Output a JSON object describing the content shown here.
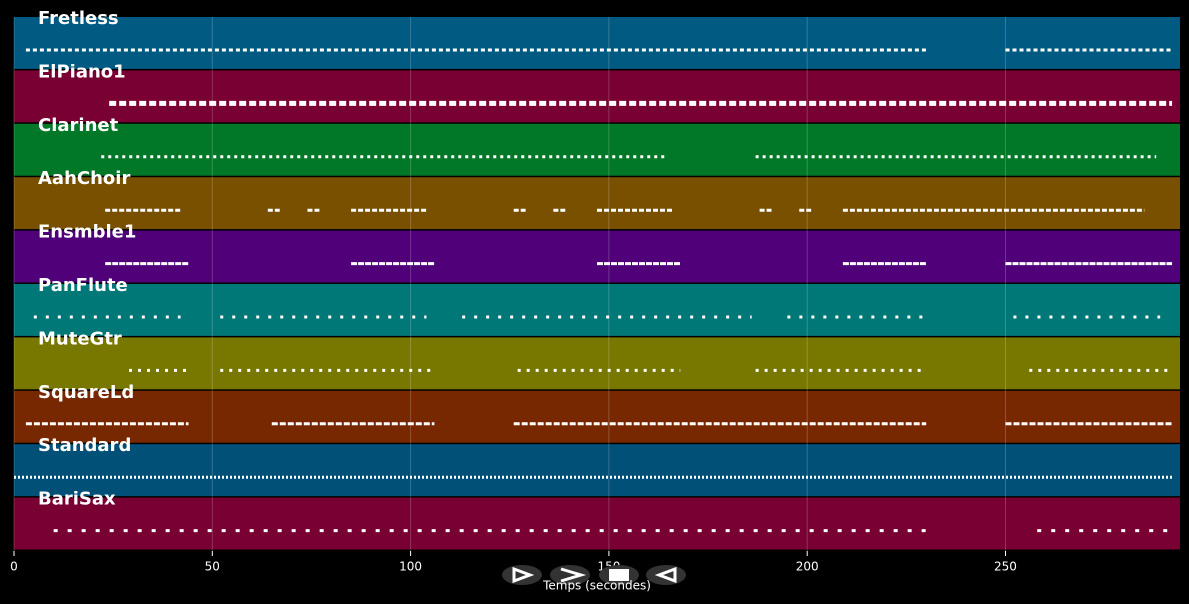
{
  "chart_data": {
    "type": "pianoroll",
    "x_label": "Temps (secondes)",
    "xlim": [
      0,
      294
    ],
    "xticks": [
      0,
      50,
      100,
      150,
      200,
      250
    ],
    "grid": true,
    "series": [
      {
        "name": "Fretless",
        "color": "#005a82",
        "segments": [
          [
            3,
            230
          ],
          [
            250,
            292
          ]
        ]
      },
      {
        "name": "ElPiano1",
        "color": "#780032",
        "segments": [
          [
            24,
            292
          ]
        ]
      },
      {
        "name": "Clarinet",
        "color": "#007828",
        "segments": [
          [
            22,
            164
          ],
          [
            187,
            288
          ]
        ]
      },
      {
        "name": "AahChoir",
        "color": "#785000",
        "segments": [
          [
            23,
            42
          ],
          [
            64,
            67
          ],
          [
            74,
            77
          ],
          [
            85,
            104
          ],
          [
            126,
            129
          ],
          [
            136,
            139
          ],
          [
            147,
            166
          ],
          [
            188,
            191
          ],
          [
            198,
            201
          ],
          [
            209,
            285
          ]
        ]
      },
      {
        "name": "Ensmble1",
        "color": "#500078",
        "segments": [
          [
            23,
            44
          ],
          [
            85,
            106
          ],
          [
            147,
            168
          ],
          [
            209,
            230
          ],
          [
            250,
            292
          ]
        ]
      },
      {
        "name": "PanFlute",
        "color": "#007878",
        "segments": [
          [
            5,
            42
          ],
          [
            52,
            104
          ],
          [
            113,
            186
          ],
          [
            195,
            230
          ],
          [
            252,
            289
          ]
        ]
      },
      {
        "name": "MuteGtr",
        "color": "#787800",
        "segments": [
          [
            29,
            44
          ],
          [
            52,
            106
          ],
          [
            127,
            168
          ],
          [
            187,
            230
          ],
          [
            256,
            292
          ]
        ]
      },
      {
        "name": "SquareLd",
        "color": "#782800",
        "segments": [
          [
            3,
            44
          ],
          [
            65,
            106
          ],
          [
            126,
            230
          ],
          [
            250,
            292
          ]
        ]
      },
      {
        "name": "Standard",
        "color": "#005078",
        "segments": [
          [
            0,
            292
          ]
        ]
      },
      {
        "name": "BariSax",
        "color": "#780032",
        "segments": [
          [
            10,
            231
          ],
          [
            258,
            292
          ]
        ]
      }
    ]
  }
}
